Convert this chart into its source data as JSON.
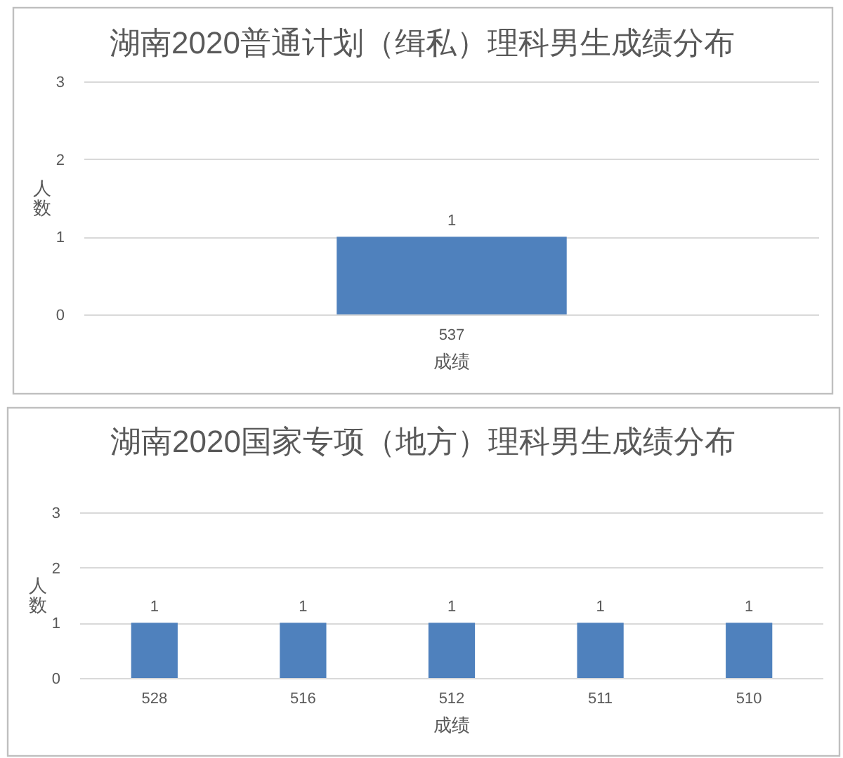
{
  "chart_data": [
    {
      "type": "bar",
      "title": "湖南2020普通计划（缉私）理科男生成绩分布",
      "xlabel": "成绩",
      "ylabel": "人数",
      "categories": [
        "537"
      ],
      "values": [
        1
      ],
      "color": "#4f81bd",
      "ylim": [
        0,
        3
      ],
      "yticks": [
        0,
        1,
        2,
        3
      ],
      "grid": "y",
      "data_labels": true
    },
    {
      "type": "bar",
      "title": "湖南2020国家专项（地方）理科男生成绩分布",
      "xlabel": "成绩",
      "ylabel": "人数",
      "categories": [
        "528",
        "516",
        "512",
        "511",
        "510"
      ],
      "values": [
        1,
        1,
        1,
        1,
        1
      ],
      "color": "#4f81bd",
      "ylim": [
        0,
        3
      ],
      "yticks": [
        0,
        1,
        2,
        3
      ],
      "grid": "y",
      "data_labels": true
    }
  ]
}
